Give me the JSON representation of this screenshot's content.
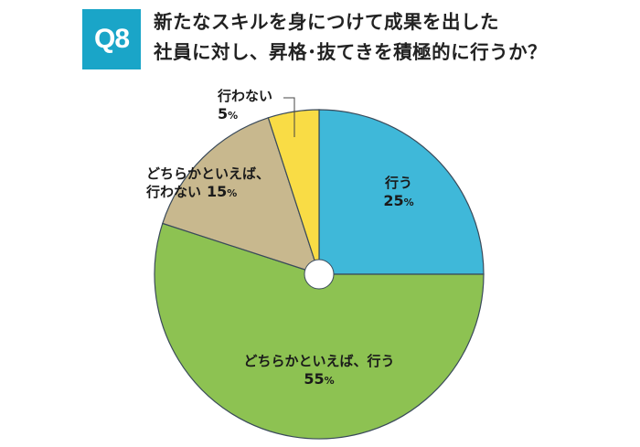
{
  "question": {
    "badge": "Q8",
    "line1": "新たなスキルを身につけて成果を出した",
    "line2": "社員に対し、昇格･抜てきを積極的に行うか？"
  },
  "chart_data": {
    "type": "pie",
    "slices": [
      {
        "label_lines": [
          "行う"
        ],
        "value": 25,
        "pct_text": "25",
        "color": "#3fb8d9"
      },
      {
        "label_lines": [
          "どちらかといえば、行う"
        ],
        "value": 55,
        "pct_text": "55",
        "color": "#8dc252"
      },
      {
        "label_lines": [
          "どちらかといえば、",
          "行わない"
        ],
        "value": 15,
        "pct_text": "15",
        "color": "#c8b88e"
      },
      {
        "label_lines": [
          "行わない"
        ],
        "value": 5,
        "pct_text": "5",
        "color": "#f9dc45"
      }
    ],
    "percent_sign": "%"
  }
}
